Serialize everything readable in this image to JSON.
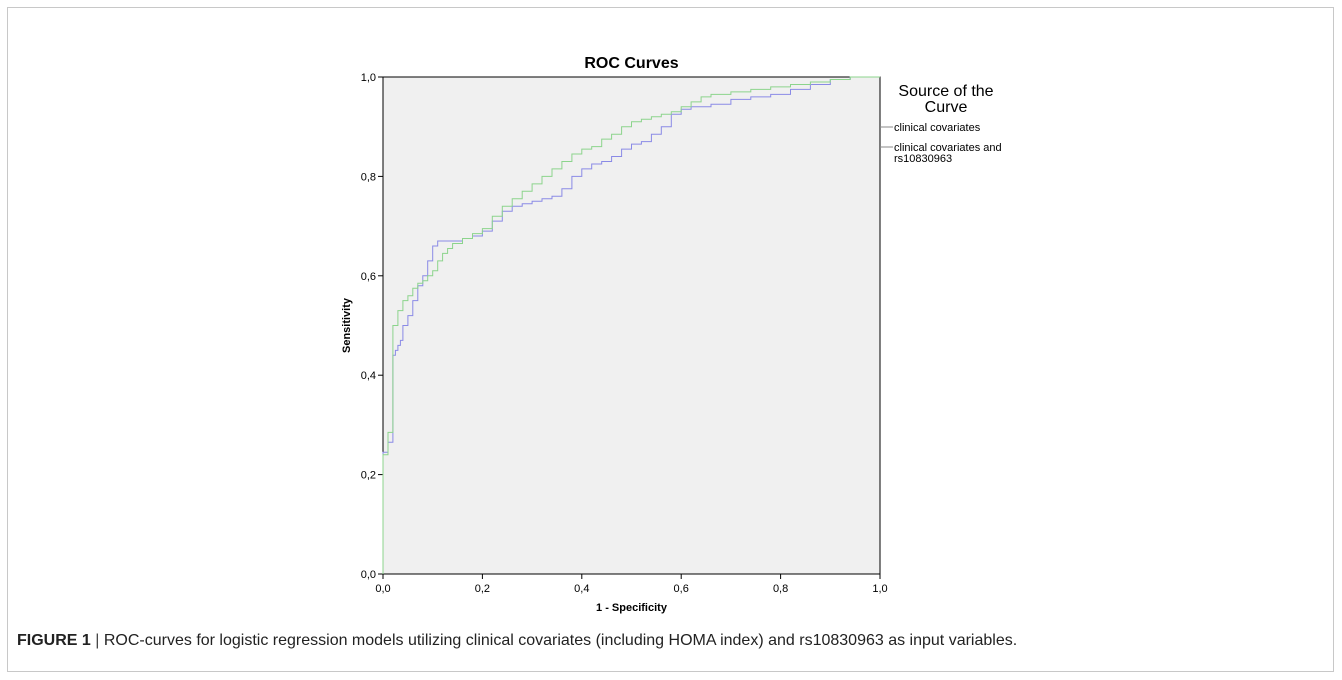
{
  "figure": {
    "label": "FIGURE 1",
    "separator": "|",
    "caption": "ROC-curves for logistic regression models utilizing clinical covariates (including HOMA index) and rs10830963 as input variables."
  },
  "chart_data": {
    "type": "line",
    "title": "ROC Curves",
    "xlabel": "1 - Specificity",
    "ylabel": "Sensitivity",
    "xlim": [
      0,
      1
    ],
    "ylim": [
      0,
      1
    ],
    "x_ticks": [
      "0,0",
      "0,2",
      "0,4",
      "0,6",
      "0,8",
      "1,0"
    ],
    "y_ticks": [
      "0,0",
      "0,2",
      "0,4",
      "0,6",
      "0,8",
      "1,0"
    ],
    "grid": false,
    "background": "#f0f0f0",
    "legend": {
      "title": [
        "Source of the",
        "Curve"
      ],
      "position": "right",
      "entries": [
        {
          "label_lines": [
            "clinical covariates"
          ]
        },
        {
          "label_lines": [
            "clinical covariates and",
            "rs10830963"
          ]
        }
      ]
    },
    "series": [
      {
        "name": "clinical covariates",
        "color": "#8a8ae6",
        "x": [
          0,
          0,
          0.01,
          0.01,
          0.02,
          0.02,
          0.025,
          0.03,
          0.035,
          0.04,
          0.05,
          0.06,
          0.07,
          0.08,
          0.09,
          0.1,
          0.11,
          0.12,
          0.13,
          0.14,
          0.16,
          0.18,
          0.2,
          0.22,
          0.24,
          0.26,
          0.27,
          0.28,
          0.3,
          0.32,
          0.34,
          0.36,
          0.38,
          0.4,
          0.42,
          0.44,
          0.46,
          0.48,
          0.5,
          0.52,
          0.54,
          0.56,
          0.58,
          0.6,
          0.62,
          0.66,
          0.7,
          0.74,
          0.78,
          0.82,
          0.86,
          0.9,
          0.94,
          0.97,
          1
        ],
        "y": [
          0,
          0.245,
          0.245,
          0.265,
          0.265,
          0.43,
          0.44,
          0.45,
          0.46,
          0.47,
          0.5,
          0.52,
          0.55,
          0.58,
          0.6,
          0.63,
          0.66,
          0.67,
          0.67,
          0.67,
          0.67,
          0.675,
          0.68,
          0.69,
          0.71,
          0.73,
          0.74,
          0.74,
          0.745,
          0.75,
          0.755,
          0.76,
          0.775,
          0.8,
          0.815,
          0.825,
          0.83,
          0.84,
          0.855,
          0.865,
          0.87,
          0.885,
          0.9,
          0.925,
          0.935,
          0.94,
          0.945,
          0.955,
          0.96,
          0.965,
          0.975,
          0.985,
          0.995,
          1,
          1
        ]
      },
      {
        "name": "clinical covariates and rs10830963",
        "color": "#8cd48c",
        "x": [
          0,
          0,
          0.01,
          0.01,
          0.02,
          0.02,
          0.03,
          0.04,
          0.05,
          0.06,
          0.07,
          0.08,
          0.09,
          0.1,
          0.11,
          0.12,
          0.13,
          0.14,
          0.16,
          0.18,
          0.2,
          0.22,
          0.24,
          0.26,
          0.28,
          0.3,
          0.32,
          0.34,
          0.36,
          0.38,
          0.4,
          0.42,
          0.44,
          0.46,
          0.48,
          0.5,
          0.52,
          0.54,
          0.56,
          0.58,
          0.6,
          0.62,
          0.64,
          0.66,
          0.7,
          0.74,
          0.78,
          0.82,
          0.86,
          0.9,
          0.94,
          0.97,
          1
        ],
        "y": [
          0,
          0.24,
          0.24,
          0.285,
          0.285,
          0.475,
          0.5,
          0.53,
          0.55,
          0.56,
          0.575,
          0.585,
          0.59,
          0.6,
          0.61,
          0.63,
          0.645,
          0.655,
          0.665,
          0.675,
          0.685,
          0.695,
          0.72,
          0.74,
          0.755,
          0.77,
          0.785,
          0.8,
          0.815,
          0.83,
          0.845,
          0.855,
          0.86,
          0.875,
          0.885,
          0.9,
          0.91,
          0.915,
          0.92,
          0.925,
          0.93,
          0.94,
          0.95,
          0.96,
          0.965,
          0.97,
          0.975,
          0.98,
          0.985,
          0.99,
          0.995,
          1,
          1
        ]
      }
    ]
  }
}
